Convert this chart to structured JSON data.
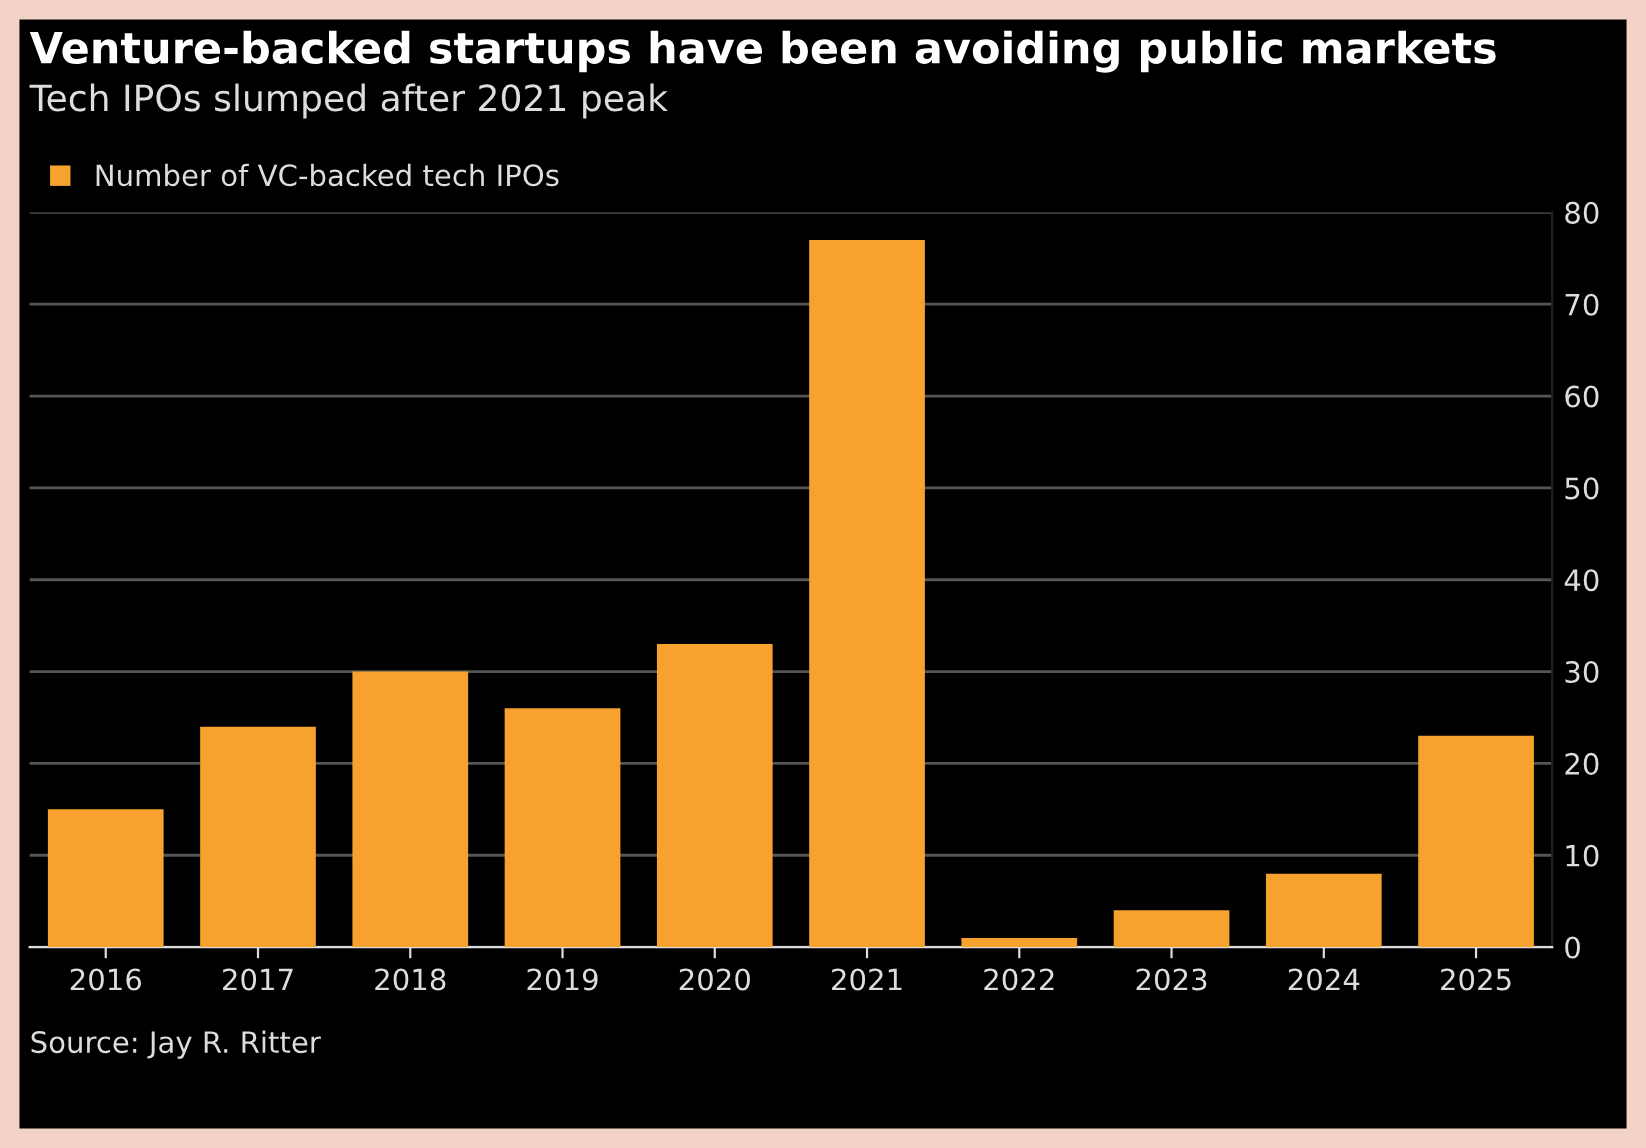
{
  "chart_data": {
    "type": "bar",
    "title": "Venture-backed startups have been avoiding public markets",
    "subtitle": "Tech IPOs slumped after 2021 peak",
    "categories": [
      "2016",
      "2017",
      "2018",
      "2019",
      "2020",
      "2021",
      "2022",
      "2023",
      "2024",
      "2025"
    ],
    "series": [
      {
        "name": "Number of VC-backed tech IPOs",
        "color": "#f7a12f",
        "values": [
          15,
          24,
          30,
          26,
          33,
          77,
          1,
          4,
          8,
          23
        ]
      }
    ],
    "ylim": [
      0,
      80
    ],
    "yticks": [
      0,
      10,
      20,
      30,
      40,
      50,
      60,
      70,
      80
    ],
    "grid": "y",
    "legend": "top left",
    "annotations": [
      "Source: Jay R. Ritter"
    ]
  }
}
